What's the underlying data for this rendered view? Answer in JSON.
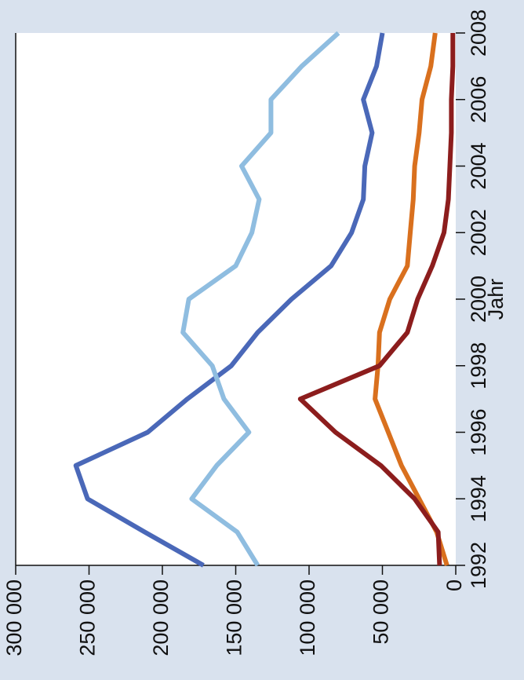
{
  "chart_data": {
    "type": "line",
    "orientation": "rotated-90",
    "xlabel": "Jahr",
    "ylabel": "",
    "x": [
      1992,
      1993,
      1994,
      1995,
      1996,
      1997,
      1998,
      1999,
      2000,
      2001,
      2002,
      2003,
      2004,
      2005,
      2006,
      2007,
      2008
    ],
    "x_ticks": [
      1992,
      1994,
      1996,
      1998,
      2000,
      2002,
      2004,
      2006,
      2008
    ],
    "x_tick_labels": [
      "1992",
      "1994",
      "1996",
      "1998",
      "2000",
      "2002",
      "2004",
      "2006",
      "2008"
    ],
    "xlim": [
      1992,
      2008
    ],
    "ylim": [
      0,
      300000
    ],
    "y_ticks": [
      0,
      50000,
      100000,
      150000,
      200000,
      250000,
      300000
    ],
    "y_tick_labels": [
      "0",
      "50 000",
      "100 000",
      "150 000",
      "200 000",
      "250 000",
      "300 000"
    ],
    "grid": false,
    "legend": "none",
    "background": "#d9e2ee",
    "plot_background": "#ffffff",
    "series": [
      {
        "color": "#4a68b8",
        "values": [
          172000,
          212000,
          251000,
          259000,
          210000,
          183000,
          153000,
          135000,
          112000,
          85000,
          71000,
          63000,
          62000,
          57000,
          63000,
          54000,
          50000
        ]
      },
      {
        "color": "#8fbde0",
        "values": [
          135000,
          149000,
          180000,
          163000,
          141000,
          158000,
          166000,
          186000,
          182000,
          150000,
          139000,
          134000,
          146000,
          126000,
          126000,
          105000,
          80000
        ]
      },
      {
        "color": "#d9701e",
        "values": [
          6000,
          13000,
          25000,
          37000,
          46000,
          55000,
          53000,
          52000,
          45000,
          33000,
          31000,
          29000,
          28000,
          25000,
          23000,
          17000,
          14000
        ]
      },
      {
        "color": "#8c1d1d",
        "values": [
          11000,
          12000,
          28000,
          51000,
          82000,
          106000,
          52000,
          33000,
          26000,
          16000,
          8000,
          5000,
          4000,
          3000,
          3000,
          2000,
          2000
        ]
      }
    ]
  }
}
